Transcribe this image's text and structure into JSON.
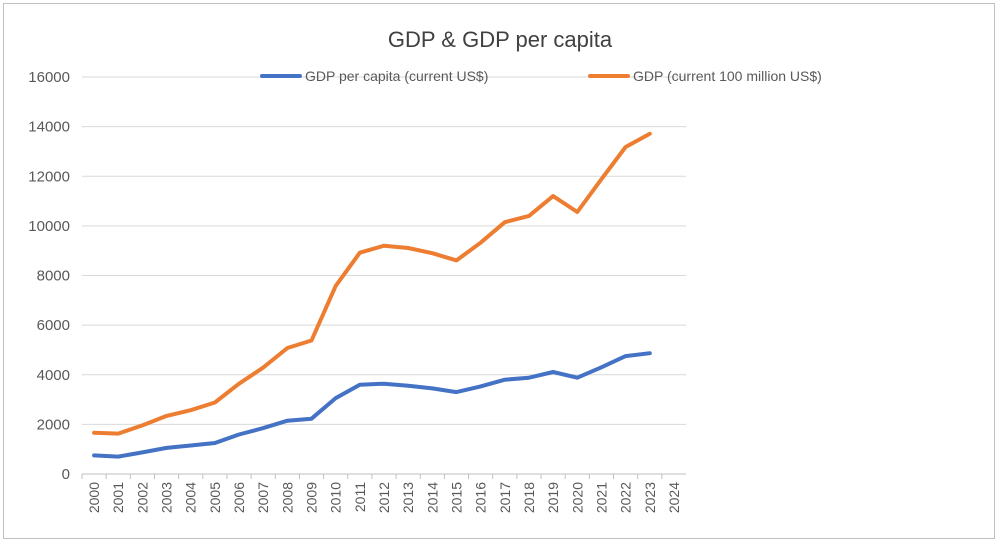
{
  "chart_data": {
    "type": "line",
    "title": "GDP & GDP per capita",
    "xlabel": "",
    "ylabel": "",
    "categories": [
      "2000",
      "2001",
      "2002",
      "2003",
      "2004",
      "2005",
      "2006",
      "2007",
      "2008",
      "2009",
      "2010",
      "2011",
      "2012",
      "2013",
      "2014",
      "2015",
      "2016",
      "2017",
      "2018",
      "2019",
      "2020",
      "2021",
      "2022",
      "2023",
      "2024"
    ],
    "ylim": [
      0,
      16000
    ],
    "yticks": [
      "0",
      "2000",
      "4000",
      "6000",
      "8000",
      "10000",
      "12000",
      "14000",
      "16000"
    ],
    "grid": true,
    "legend_position": "top",
    "series": [
      {
        "name": "GDP per capita (current US$)",
        "color": "#4472C4",
        "values": [
          750,
          700,
          870,
          1050,
          1150,
          1250,
          1590,
          1850,
          2150,
          2230,
          3060,
          3600,
          3640,
          3560,
          3450,
          3300,
          3530,
          3800,
          3880,
          4110,
          3880,
          4300,
          4750,
          4870,
          null
        ]
      },
      {
        "name": "GDP (current 100 million US$)",
        "color": "#ED7D31",
        "values": [
          1660,
          1630,
          1960,
          2340,
          2570,
          2880,
          3640,
          4290,
          5080,
          5380,
          7580,
          8920,
          9200,
          9110,
          8900,
          8610,
          9320,
          10150,
          10400,
          11200,
          10560,
          11880,
          13180,
          13710,
          null
        ]
      }
    ]
  }
}
